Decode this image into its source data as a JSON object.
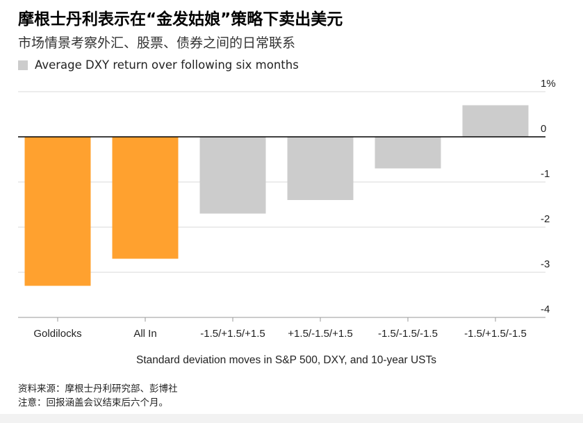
{
  "title": "摩根士丹利表示在“金发姑娘”策略下卖出美元",
  "subtitle": "市场情景考察外汇、股票、债券之间的日常联系",
  "legend_label": "Average DXY return over following six months",
  "footer": {
    "source": "资料来源：摩根士丹利研究部、彭博社",
    "note": "注意：回报涵盖会议结束后六个月。"
  },
  "colors": {
    "highlight": "#ffa12f",
    "neutral": "#cccccc",
    "grid": "#d9d9d9",
    "axis": "#000000"
  },
  "chart_data": {
    "type": "bar",
    "title": "摩根士丹利表示在“金发姑娘”策略下卖出美元",
    "xlabel": "Standard deviation moves in S&P 500, DXY, and 10-year USTs",
    "ylabel": "",
    "ylim": [
      -4,
      1
    ],
    "yticks": [
      1,
      0,
      -1,
      -2,
      -3,
      -4
    ],
    "ytick_labels": [
      "1%",
      "0",
      "-1",
      "-2",
      "-3",
      "-4"
    ],
    "categories": [
      "Goldilocks",
      "All In",
      "-1.5/+1.5/+1.5",
      "+1.5/-1.5/+1.5",
      "-1.5/-1.5/-1.5",
      "-1.5/+1.5/-1.5"
    ],
    "values": [
      -3.3,
      -2.7,
      -1.7,
      -1.4,
      -0.7,
      0.7
    ],
    "bar_color_keys": [
      "highlight",
      "highlight",
      "neutral",
      "neutral",
      "neutral",
      "neutral"
    ],
    "legend": [
      "Average DXY return over following six months"
    ],
    "grid": true
  }
}
